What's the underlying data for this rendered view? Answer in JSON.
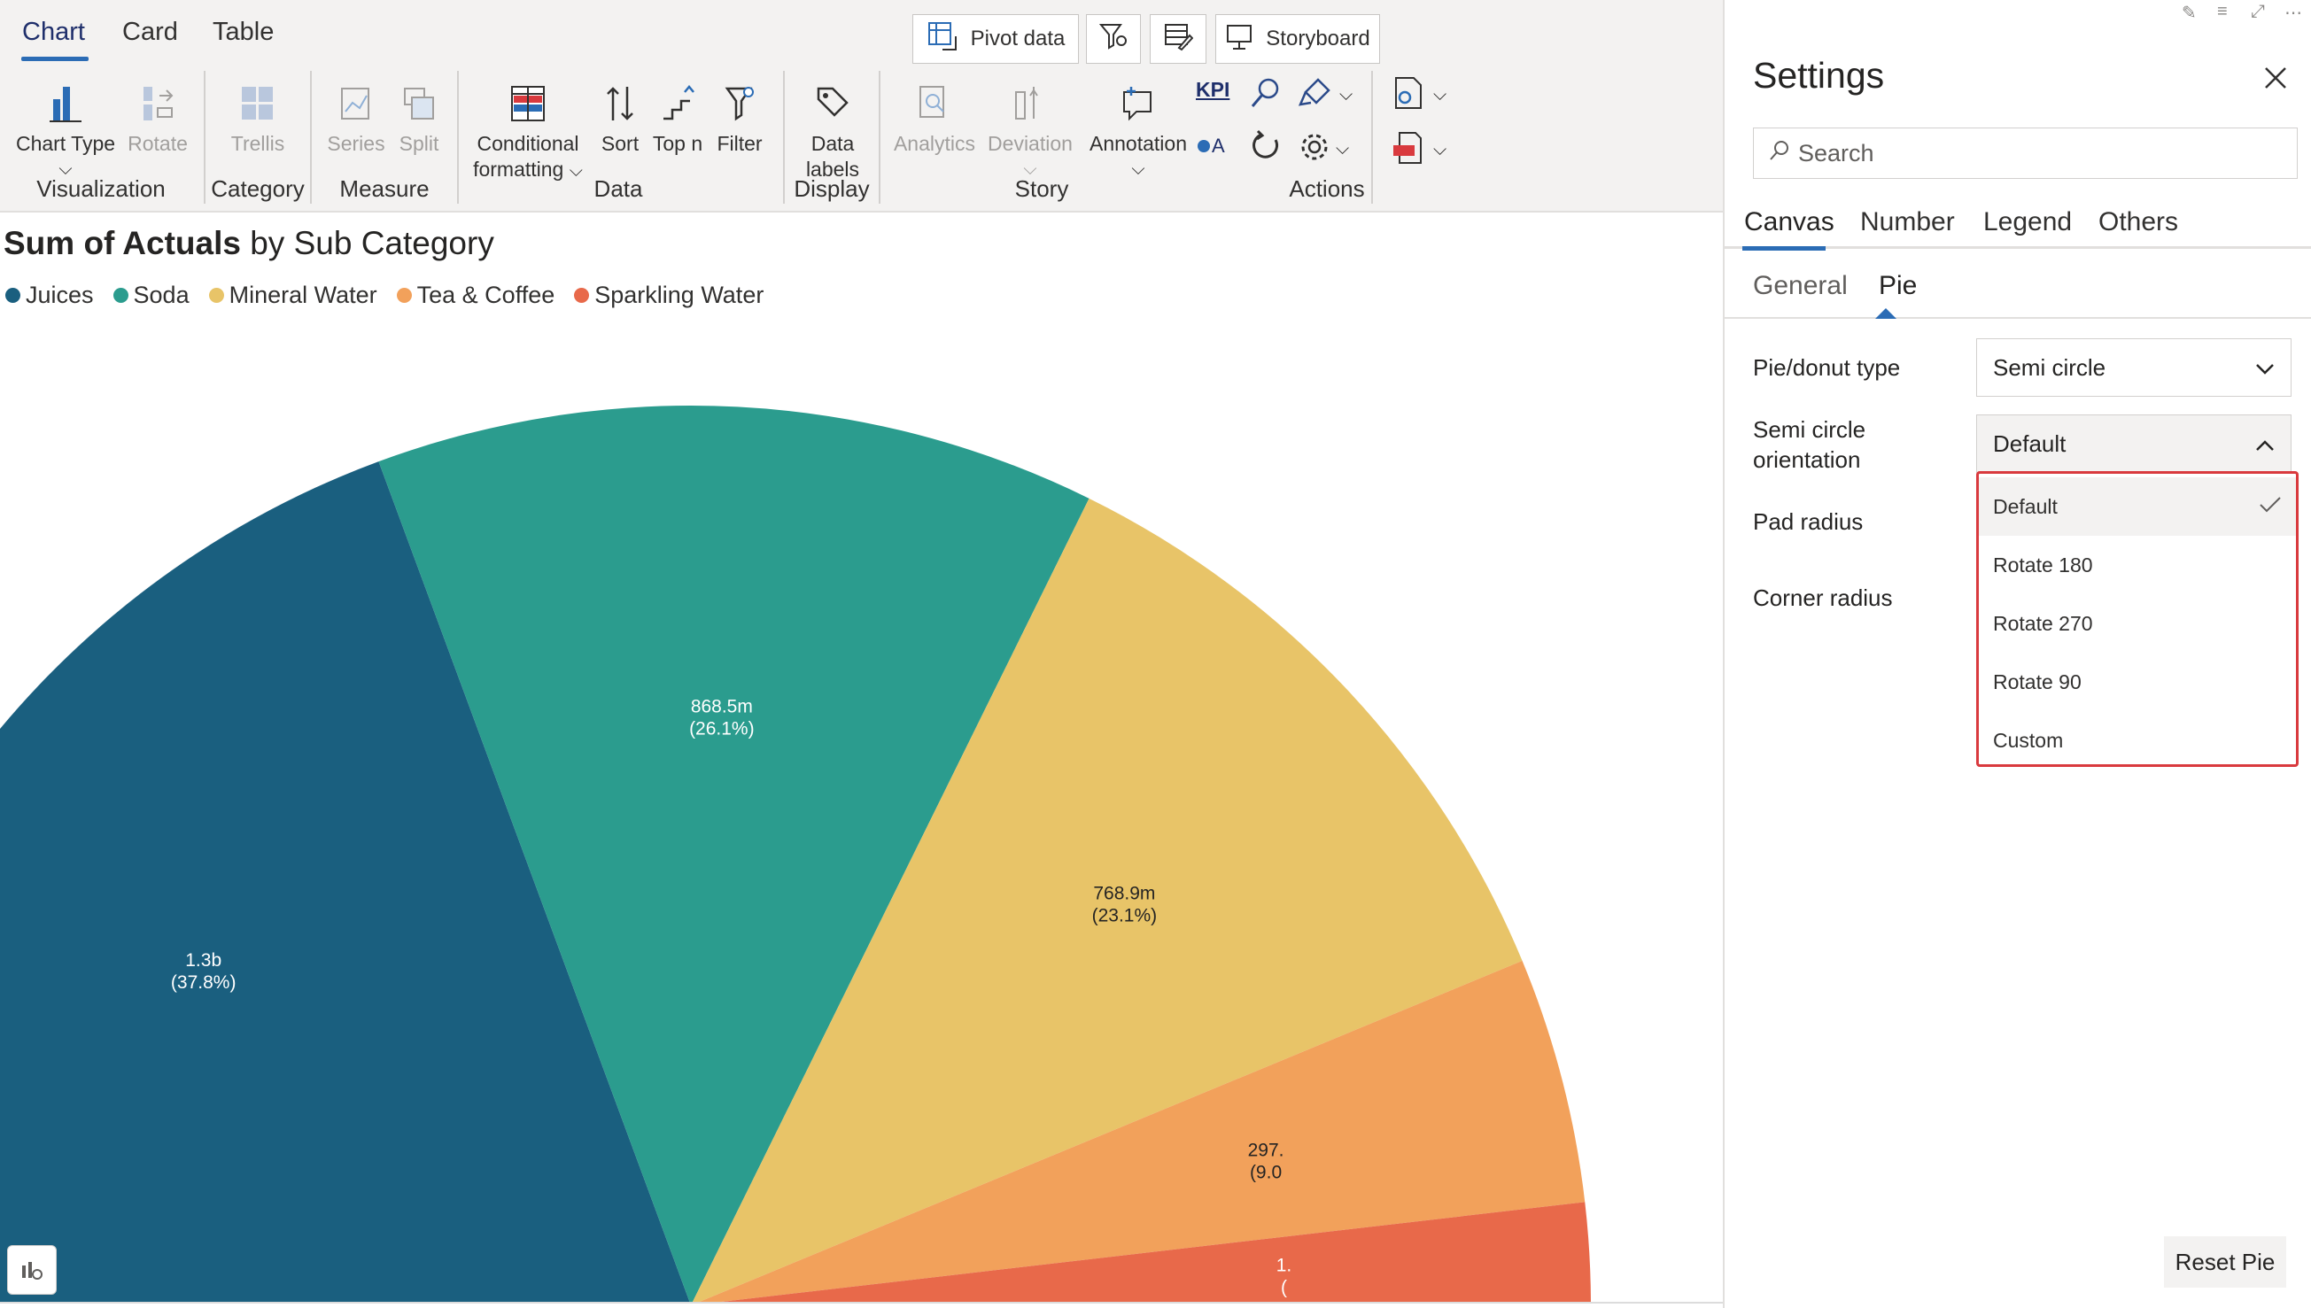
{
  "ribbon": {
    "tabs": [
      "Chart",
      "Card",
      "Table"
    ],
    "top_buttons": {
      "pivot": "Pivot data",
      "storyboard": "Storyboard"
    },
    "buttons": {
      "chart_type": "Chart Type",
      "rotate": "Rotate",
      "trellis": "Trellis",
      "series": "Series",
      "split": "Split",
      "conditional_1": "Conditional",
      "conditional_2": "formatting",
      "sort": "Sort",
      "topn": "Top n",
      "filter": "Filter",
      "data_labels_1": "Data",
      "data_labels_2": "labels",
      "analytics": "Analytics",
      "deviation": "Deviation",
      "annotation": "Annotation",
      "kpi": "KPI",
      "oa": "A"
    },
    "groups": {
      "visualization": "Visualization",
      "category": "Category",
      "measure": "Measure",
      "data": "Data",
      "display": "Display",
      "story": "Story",
      "actions": "Actions"
    }
  },
  "chart": {
    "title_bold": "Sum of Actuals",
    "title_rest": " by Sub Category",
    "legend": [
      {
        "name": "Juices",
        "color": "#1a5f7f"
      },
      {
        "name": "Soda",
        "color": "#2b9c8e"
      },
      {
        "name": "Mineral Water",
        "color": "#e8c468"
      },
      {
        "name": "Tea & Coffee",
        "color": "#f2a15b"
      },
      {
        "name": "Sparkling Water",
        "color": "#e8694a"
      }
    ]
  },
  "chart_data": {
    "type": "pie",
    "title": "Sum of Actuals by Sub Category",
    "subtype": "semi circle",
    "legend_position": "top-left",
    "categories": [
      "Juices",
      "Soda",
      "Mineral Water",
      "Tea & Coffee",
      "Sparkling Water"
    ],
    "values": [
      1300,
      868.5,
      768.9,
      297,
      123
    ],
    "percent": [
      37.8,
      26.1,
      23.1,
      9.0,
      3.7
    ],
    "labels": [
      "1.3b\n(37.8%)",
      "868.5m\n(26.1%)",
      "768.9m\n(23.1%)",
      "297.\n(9.0",
      "1.\n("
    ],
    "colors": [
      "#1a5f7f",
      "#2b9c8e",
      "#e8c468",
      "#f2a15b",
      "#e8694a"
    ]
  },
  "settings": {
    "title": "Settings",
    "search_placeholder": "Search",
    "tabs": [
      "Canvas",
      "Number",
      "Legend",
      "Others"
    ],
    "subtabs": [
      "General",
      "Pie"
    ],
    "fields": {
      "pie_type_label": "Pie/donut type",
      "pie_type_value": "Semi circle",
      "orientation_label_1": "Semi circle",
      "orientation_label_2": "orientation",
      "orientation_value": "Default",
      "pad_radius_label": "Pad radius",
      "corner_radius_label": "Corner radius"
    },
    "orientation_options": [
      "Default",
      "Rotate 180",
      "Rotate 270",
      "Rotate 90",
      "Custom"
    ],
    "reset_label": "Reset Pie"
  }
}
